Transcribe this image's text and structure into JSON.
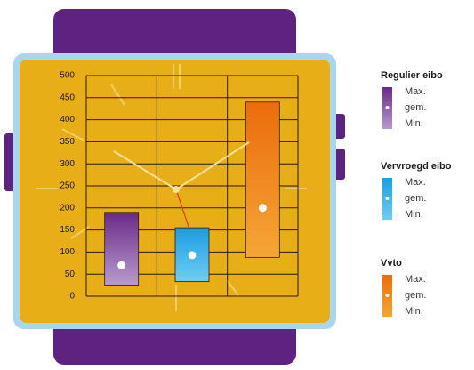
{
  "chart_data": {
    "type": "range",
    "ylim": [
      0,
      500
    ],
    "yticks": [
      0,
      50,
      100,
      150,
      200,
      250,
      300,
      350,
      400,
      450,
      500
    ],
    "grid": true,
    "legend_labels": [
      "Max.",
      "gem.",
      "Min."
    ],
    "series": [
      {
        "name": "Regulier eibo",
        "color": "#6a2a86",
        "color_light": "#b79bd0",
        "min": 25,
        "mean": 70,
        "max": 190
      },
      {
        "name": "Vervroegd eibo",
        "color": "#1b9de0",
        "color_light": "#6fcdf3",
        "min": 33,
        "mean": 93,
        "max": 155
      },
      {
        "name": "Vvto",
        "color": "#ec6c0c",
        "color_light": "#f4a637",
        "min": 88,
        "mean": 200,
        "max": 440
      }
    ]
  }
}
